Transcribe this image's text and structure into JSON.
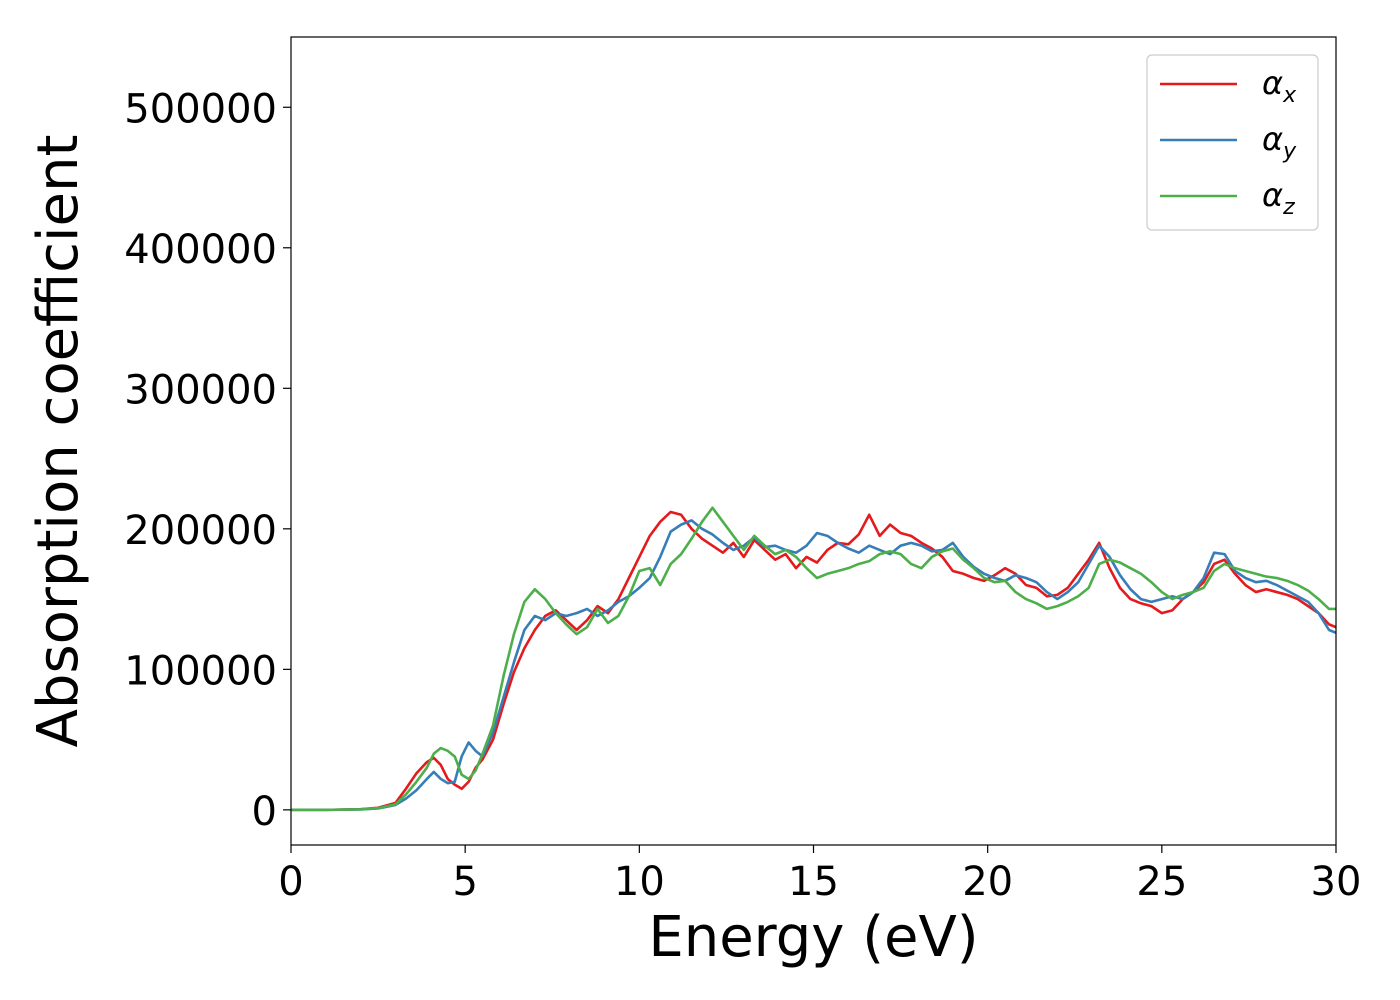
{
  "chart_data": {
    "type": "line",
    "xlabel": "Energy (eV)",
    "ylabel": "Absorption coefficient",
    "xlim": [
      0,
      30
    ],
    "ylim": [
      -25000,
      550000
    ],
    "xticks": [
      0,
      5,
      10,
      15,
      20,
      25,
      30
    ],
    "xtick_labels": [
      "0",
      "5",
      "10",
      "15",
      "20",
      "25",
      "30"
    ],
    "yticks": [
      0,
      100000,
      200000,
      300000,
      400000,
      500000
    ],
    "ytick_labels": [
      "0",
      "100000",
      "200000",
      "300000",
      "400000",
      "500000"
    ],
    "grid": false,
    "legend_position": "top-right",
    "series": [
      {
        "name": "α",
        "name_subscript": "x",
        "color": "#e41a1c",
        "x": [
          0,
          1,
          2,
          2.5,
          3,
          3.3,
          3.6,
          3.9,
          4.1,
          4.3,
          4.5,
          4.7,
          4.9,
          5.1,
          5.3,
          5.5,
          5.8,
          6.1,
          6.4,
          6.7,
          7.0,
          7.3,
          7.6,
          7.9,
          8.2,
          8.5,
          8.8,
          9.1,
          9.4,
          9.7,
          10.0,
          10.3,
          10.6,
          10.9,
          11.2,
          11.5,
          11.8,
          12.1,
          12.4,
          12.7,
          13.0,
          13.3,
          13.6,
          13.9,
          14.2,
          14.5,
          14.8,
          15.1,
          15.4,
          15.7,
          16.0,
          16.3,
          16.6,
          16.9,
          17.2,
          17.5,
          17.8,
          18.1,
          18.4,
          18.7,
          19.0,
          19.3,
          19.6,
          19.9,
          20.2,
          20.5,
          20.8,
          21.1,
          21.4,
          21.7,
          22.0,
          22.3,
          22.6,
          22.9,
          23.2,
          23.5,
          23.8,
          24.1,
          24.4,
          24.7,
          25.0,
          25.3,
          25.6,
          25.9,
          26.2,
          26.5,
          26.8,
          27.1,
          27.4,
          27.7,
          28.0,
          28.3,
          28.6,
          28.9,
          29.2,
          29.5,
          29.8,
          30
        ],
        "y": [
          0,
          0,
          500,
          1500,
          5000,
          15000,
          26000,
          34000,
          37000,
          32000,
          22000,
          18000,
          15000,
          20000,
          30000,
          36000,
          50000,
          75000,
          98000,
          115000,
          128000,
          138000,
          142000,
          135000,
          128000,
          135000,
          145000,
          140000,
          150000,
          165000,
          180000,
          195000,
          205000,
          212000,
          210000,
          200000,
          193000,
          188000,
          183000,
          190000,
          180000,
          192000,
          185000,
          178000,
          182000,
          172000,
          180000,
          176000,
          185000,
          190000,
          189000,
          196000,
          210000,
          195000,
          203000,
          197000,
          195000,
          190000,
          186000,
          180000,
          170000,
          168000,
          165000,
          163000,
          167000,
          172000,
          168000,
          160000,
          158000,
          152000,
          153000,
          158000,
          168000,
          178000,
          190000,
          172000,
          158000,
          150000,
          147000,
          145000,
          140000,
          142000,
          150000,
          155000,
          162000,
          175000,
          178000,
          168000,
          160000,
          155000,
          157000,
          155000,
          153000,
          150000,
          145000,
          140000,
          132000,
          130000
        ]
      },
      {
        "name": "α",
        "name_subscript": "y",
        "color": "#377eb8",
        "x": [
          0,
          1,
          2,
          2.5,
          3,
          3.3,
          3.6,
          3.9,
          4.1,
          4.3,
          4.5,
          4.7,
          4.9,
          5.1,
          5.3,
          5.5,
          5.8,
          6.1,
          6.4,
          6.7,
          7.0,
          7.3,
          7.6,
          7.9,
          8.2,
          8.5,
          8.8,
          9.1,
          9.4,
          9.7,
          10.0,
          10.3,
          10.6,
          10.9,
          11.2,
          11.5,
          11.8,
          12.1,
          12.4,
          12.7,
          13.0,
          13.3,
          13.6,
          13.9,
          14.2,
          14.5,
          14.8,
          15.1,
          15.4,
          15.7,
          16.0,
          16.3,
          16.6,
          16.9,
          17.2,
          17.5,
          17.8,
          18.1,
          18.4,
          18.7,
          19.0,
          19.3,
          19.6,
          19.9,
          20.2,
          20.5,
          20.8,
          21.1,
          21.4,
          21.7,
          22.0,
          22.3,
          22.6,
          22.9,
          23.2,
          23.5,
          23.8,
          24.1,
          24.4,
          24.7,
          25.0,
          25.3,
          25.6,
          25.9,
          26.2,
          26.5,
          26.8,
          27.1,
          27.4,
          27.7,
          28.0,
          28.3,
          28.6,
          28.9,
          29.2,
          29.5,
          29.8,
          30
        ],
        "y": [
          0,
          0,
          300,
          1000,
          3500,
          8000,
          14000,
          22000,
          27000,
          22000,
          19000,
          20000,
          38000,
          48000,
          42000,
          38000,
          55000,
          80000,
          105000,
          128000,
          138000,
          135000,
          140000,
          138000,
          140000,
          143000,
          138000,
          142000,
          148000,
          152000,
          158000,
          165000,
          180000,
          198000,
          203000,
          206000,
          200000,
          196000,
          190000,
          185000,
          188000,
          194000,
          187000,
          188000,
          185000,
          183000,
          188000,
          197000,
          195000,
          190000,
          186000,
          183000,
          188000,
          185000,
          182000,
          188000,
          190000,
          188000,
          184000,
          185000,
          190000,
          180000,
          173000,
          168000,
          165000,
          163000,
          167000,
          165000,
          162000,
          155000,
          150000,
          155000,
          162000,
          175000,
          188000,
          180000,
          167000,
          157000,
          150000,
          148000,
          150000,
          152000,
          150000,
          155000,
          165000,
          183000,
          182000,
          170000,
          165000,
          162000,
          163000,
          160000,
          156000,
          152000,
          148000,
          140000,
          128000,
          126000
        ]
      },
      {
        "name": "α",
        "name_subscript": "z",
        "color": "#4daf4a",
        "x": [
          0,
          1,
          2,
          2.5,
          3,
          3.3,
          3.6,
          3.9,
          4.1,
          4.3,
          4.5,
          4.7,
          4.9,
          5.1,
          5.3,
          5.5,
          5.8,
          6.1,
          6.4,
          6.7,
          7.0,
          7.3,
          7.6,
          7.9,
          8.2,
          8.5,
          8.8,
          9.1,
          9.4,
          9.7,
          10.0,
          10.3,
          10.6,
          10.9,
          11.2,
          11.5,
          11.8,
          12.1,
          12.4,
          12.7,
          13.0,
          13.3,
          13.6,
          13.9,
          14.2,
          14.5,
          14.8,
          15.1,
          15.4,
          15.7,
          16.0,
          16.3,
          16.6,
          16.9,
          17.2,
          17.5,
          17.8,
          18.1,
          18.4,
          18.7,
          19.0,
          19.3,
          19.6,
          19.9,
          20.2,
          20.5,
          20.8,
          21.1,
          21.4,
          21.7,
          22.0,
          22.3,
          22.6,
          22.9,
          23.2,
          23.5,
          23.8,
          24.1,
          24.4,
          24.7,
          25.0,
          25.3,
          25.6,
          25.9,
          26.2,
          26.5,
          26.8,
          27.1,
          27.4,
          27.7,
          28.0,
          28.3,
          28.6,
          28.9,
          29.2,
          29.5,
          29.8,
          30
        ],
        "y": [
          0,
          0,
          400,
          1200,
          4000,
          11000,
          20000,
          30000,
          40000,
          44000,
          42000,
          38000,
          25000,
          22000,
          28000,
          40000,
          60000,
          95000,
          125000,
          148000,
          157000,
          150000,
          140000,
          132000,
          125000,
          130000,
          143000,
          133000,
          138000,
          152000,
          170000,
          172000,
          160000,
          175000,
          182000,
          193000,
          205000,
          215000,
          205000,
          195000,
          185000,
          195000,
          188000,
          182000,
          185000,
          180000,
          172000,
          165000,
          168000,
          170000,
          172000,
          175000,
          177000,
          182000,
          184000,
          182000,
          175000,
          172000,
          180000,
          184000,
          186000,
          178000,
          172000,
          165000,
          162000,
          163000,
          155000,
          150000,
          147000,
          143000,
          145000,
          148000,
          152000,
          158000,
          175000,
          178000,
          176000,
          172000,
          168000,
          162000,
          155000,
          150000,
          153000,
          155000,
          158000,
          170000,
          175000,
          172000,
          170000,
          168000,
          166000,
          165000,
          163000,
          160000,
          156000,
          150000,
          143000,
          143000
        ]
      }
    ]
  }
}
